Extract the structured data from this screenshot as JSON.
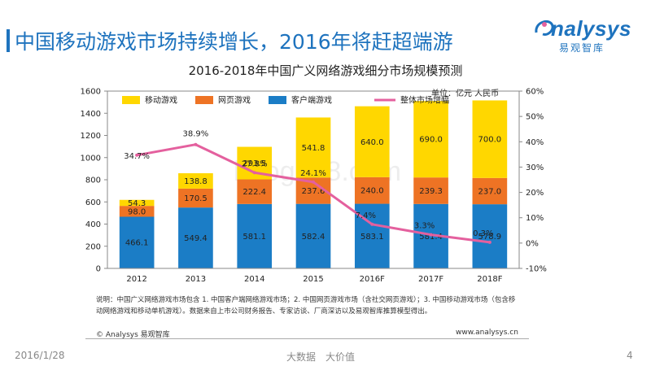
{
  "slide": {
    "title": "中国移动游戏市场持续增长，2016年将赶超端游",
    "logo_main": "nalysys",
    "logo_sub": "易观智库",
    "unit": "单位：亿元 人民币",
    "notes": "说明：中国广义网络游戏市场包含 1. 中国客户端网络游戏市场；2. 中国网页游戏市场（含社交网页游戏）；3. 中国移动游戏市场（包含移动网络游戏和移动单机游戏）。数据来自上市公司财务报告、专家访谈、厂商深访以及易观智库推算模型得出。",
    "copyright": "© Analysys 易观智库",
    "url": "www.analysys.cn",
    "date": "2016/1/28",
    "slogan": "大数据　大价值",
    "page_number": "4"
  },
  "chart_data": {
    "type": "bar",
    "stacked": true,
    "title": "2016-2018年中国广义网络游戏细分市场规模预测",
    "categories": [
      "2012",
      "2013",
      "2014",
      "2015",
      "2016F",
      "2017F",
      "2018F"
    ],
    "series": [
      {
        "name": "客户端游戏",
        "color": "#1b7dc6",
        "values": [
          466.1,
          549.4,
          581.1,
          582.4,
          583.1,
          581.4,
          578.9
        ]
      },
      {
        "name": "网页游戏",
        "color": "#ee7324",
        "values": [
          98.0,
          170.5,
          222.4,
          237.6,
          240.0,
          239.3,
          237.0
        ]
      },
      {
        "name": "移动游戏",
        "color": "#ffd700",
        "values": [
          54.3,
          138.8,
          293.5,
          541.8,
          640.0,
          690.0,
          700.0
        ]
      }
    ],
    "line_series": {
      "name": "整体市场增幅",
      "color": "#e4609e",
      "values": [
        34.7,
        38.9,
        27.8,
        24.1,
        7.4,
        3.3,
        0.3
      ],
      "labels": [
        "34.7%",
        "38.9%",
        "27.8%",
        "24.1%",
        "7.4%",
        "3.3%",
        "0.3%"
      ]
    },
    "legend_order": [
      "移动游戏",
      "网页游戏",
      "客户端游戏",
      "整体市场增幅"
    ],
    "y_left": {
      "min": 0,
      "max": 1600,
      "step": 200,
      "ticks": [
        "0",
        "200",
        "400",
        "600",
        "800",
        "1000",
        "1200",
        "1400",
        "1600"
      ]
    },
    "y_right": {
      "min": -10,
      "max": 60,
      "step": 10,
      "ticks": [
        "-10%",
        "0%",
        "10%",
        "20%",
        "30%",
        "40%",
        "50%",
        "60%"
      ]
    },
    "watermark": "baogao8.com"
  }
}
